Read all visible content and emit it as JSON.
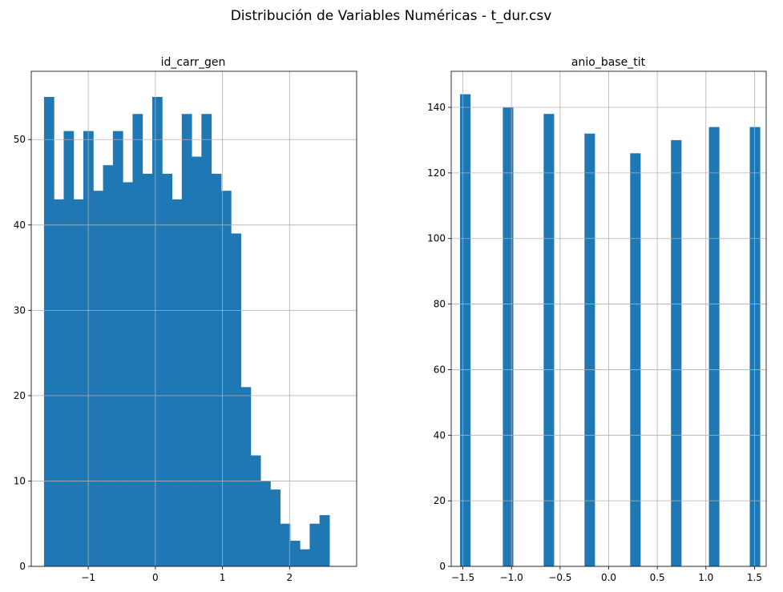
{
  "figure": {
    "suptitle": "Distribución de Variables Numéricas - t_dur.csv",
    "bar_color": "#1f77b4",
    "grid_color": "#b0b0b0"
  },
  "chart_data": [
    {
      "type": "bar",
      "title": "id_carr_gen",
      "grid": true,
      "bins": 30,
      "xlim": [
        -1.85,
        3.0
      ],
      "ylim": [
        0,
        58
      ],
      "xticks": [
        -1,
        0,
        1,
        2
      ],
      "xtick_labels": [
        "−1",
        "0",
        "1",
        "2"
      ],
      "yticks": [
        0,
        10,
        20,
        30,
        40,
        50
      ],
      "bin_range": [
        -1.66,
        2.74
      ],
      "values": [
        55,
        43,
        51,
        43,
        51,
        44,
        47,
        51,
        45,
        53,
        46,
        55,
        46,
        43,
        53,
        48,
        53,
        46,
        44,
        39,
        21,
        13,
        10,
        9,
        5,
        3,
        2,
        5,
        6,
        0
      ]
    },
    {
      "type": "bar",
      "title": "anio_base_tit",
      "grid": true,
      "xlim": [
        -1.62,
        1.62
      ],
      "ylim": [
        0,
        151
      ],
      "xticks": [
        -1.5,
        -1.0,
        -0.5,
        0.0,
        0.5,
        1.0,
        1.5
      ],
      "xtick_labels": [
        "−1.5",
        "−1.0",
        "−0.5",
        "0.0",
        "0.5",
        "1.0",
        "1.5"
      ],
      "yticks": [
        0,
        20,
        40,
        60,
        80,
        100,
        120,
        140
      ],
      "bar_width": 0.108,
      "bars": [
        {
          "x": -1.475,
          "value": 144
        },
        {
          "x": -1.035,
          "value": 140
        },
        {
          "x": -0.615,
          "value": 138
        },
        {
          "x": -0.195,
          "value": 132
        },
        {
          "x": 0.275,
          "value": 126
        },
        {
          "x": 0.695,
          "value": 130
        },
        {
          "x": 1.085,
          "value": 134
        },
        {
          "x": 1.505,
          "value": 134
        }
      ]
    }
  ]
}
